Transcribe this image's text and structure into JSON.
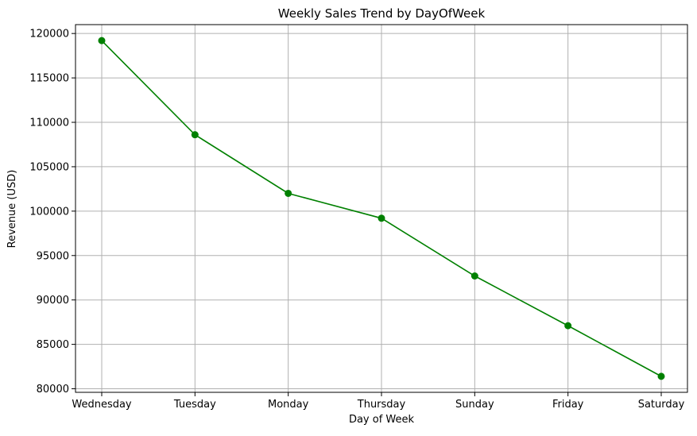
{
  "chart_data": {
    "type": "line",
    "title": "Weekly Sales Trend by DayOfWeek",
    "xlabel": "Day of Week",
    "ylabel": "Revenue (USD)",
    "categories": [
      "Wednesday",
      "Tuesday",
      "Monday",
      "Thursday",
      "Sunday",
      "Friday",
      "Saturday"
    ],
    "series": [
      {
        "values": [
          119200,
          108600,
          102000,
          99200,
          92700,
          87100,
          81400
        ],
        "color": "#008000",
        "marker": "circle"
      }
    ],
    "ylim": [
      79600,
      121000
    ],
    "yticks": [
      80000,
      85000,
      90000,
      95000,
      100000,
      105000,
      110000,
      115000,
      120000
    ],
    "grid": true,
    "grid_color": "#b0b0b0"
  }
}
